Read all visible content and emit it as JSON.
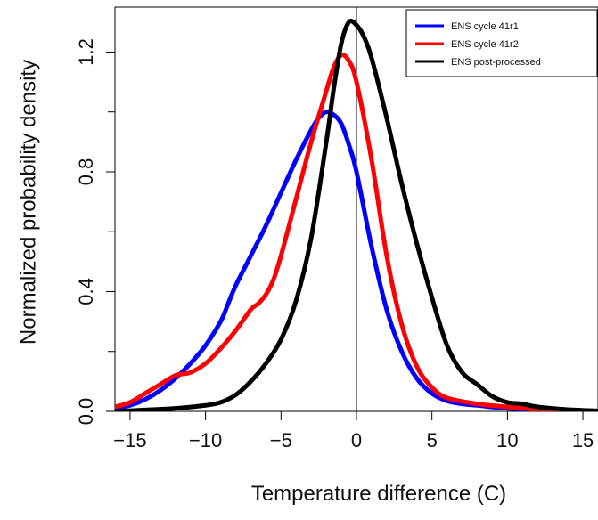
{
  "chart_data": {
    "type": "line",
    "title": "",
    "xlabel": "Temperature difference (C)",
    "ylabel": "Normalized probability density",
    "xlim": [
      -16,
      16
    ],
    "ylim": [
      0,
      1.35
    ],
    "xticks": [
      -15,
      -10,
      -5,
      0,
      5,
      10,
      15
    ],
    "xtick_labels": [
      "−15",
      "−10",
      "−5",
      "0",
      "5",
      "10",
      "15"
    ],
    "yticks": [
      0.0,
      0.4,
      0.8,
      1.2
    ],
    "ytick_labels": [
      "0.0",
      "0.4",
      "0.8",
      "1.2"
    ],
    "minor_yticks": [
      0.2,
      0.6,
      1.0
    ],
    "grid": false,
    "legend_position": "top-right",
    "vertical_reference_line": 0,
    "series": [
      {
        "name": "ENS cycle 41r1",
        "color": "#0000ff",
        "x": [
          -16,
          -15,
          -14,
          -13,
          -12,
          -11,
          -10,
          -9,
          -8.5,
          -8,
          -7,
          -6,
          -5,
          -4,
          -3,
          -2.5,
          -2,
          -1.5,
          -1,
          -0.5,
          0,
          1,
          2,
          3,
          4,
          5,
          6,
          7,
          8,
          10,
          12,
          14,
          16
        ],
        "y": [
          0.01,
          0.02,
          0.04,
          0.07,
          0.11,
          0.16,
          0.22,
          0.3,
          0.36,
          0.42,
          0.52,
          0.62,
          0.73,
          0.84,
          0.94,
          0.98,
          1.0,
          0.99,
          0.96,
          0.89,
          0.8,
          0.55,
          0.34,
          0.2,
          0.11,
          0.06,
          0.035,
          0.025,
          0.02,
          0.01,
          0.005,
          0.002,
          0.0
        ]
      },
      {
        "name": "ENS cycle 41r2",
        "color": "#ff0000",
        "x": [
          -16,
          -15,
          -14,
          -13,
          -12,
          -11,
          -10,
          -9,
          -8,
          -7,
          -6.5,
          -6,
          -5.5,
          -5,
          -4,
          -3,
          -2,
          -1.5,
          -1,
          -0.5,
          0,
          1,
          2,
          3,
          4,
          5,
          6,
          8,
          10,
          12,
          14,
          16
        ],
        "y": [
          0.015,
          0.03,
          0.06,
          0.09,
          0.12,
          0.13,
          0.16,
          0.21,
          0.27,
          0.34,
          0.36,
          0.39,
          0.44,
          0.52,
          0.71,
          0.9,
          1.07,
          1.15,
          1.19,
          1.17,
          1.1,
          0.84,
          0.52,
          0.29,
          0.15,
          0.08,
          0.045,
          0.025,
          0.015,
          0.006,
          0.002,
          0.0
        ]
      },
      {
        "name": "ENS post-processed",
        "color": "#000000",
        "x": [
          -16,
          -14,
          -12,
          -10,
          -9,
          -8,
          -7,
          -6,
          -5,
          -4,
          -3,
          -2,
          -1.5,
          -1,
          -0.5,
          0,
          0.5,
          1,
          2,
          3,
          4,
          5,
          6,
          7,
          8,
          9,
          10,
          11,
          12,
          14,
          16
        ],
        "y": [
          0.0,
          0.005,
          0.01,
          0.02,
          0.03,
          0.055,
          0.1,
          0.16,
          0.24,
          0.37,
          0.58,
          0.9,
          1.08,
          1.23,
          1.3,
          1.29,
          1.25,
          1.18,
          0.98,
          0.76,
          0.56,
          0.38,
          0.22,
          0.13,
          0.09,
          0.05,
          0.03,
          0.025,
          0.015,
          0.006,
          0.002
        ]
      }
    ]
  }
}
